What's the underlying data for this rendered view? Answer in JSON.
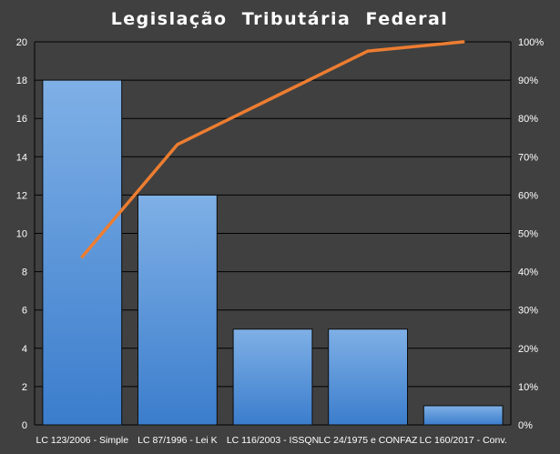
{
  "chart_data": {
    "type": "bar",
    "title": "Legislação  Tributária  Federal",
    "categories": [
      "LC 123/2006 - Simple",
      "LC 87/1996 - Lei K",
      "LC 116/2003 - ISSQN",
      "LC 24/1975 e CONFAZ",
      "LC 160/2017 - Conv."
    ],
    "series": [
      {
        "type": "bar",
        "axis": "left",
        "values": [
          18,
          12,
          5,
          5,
          1
        ]
      },
      {
        "type": "line",
        "axis": "right",
        "values": [
          43.9,
          73.2,
          85.4,
          97.6,
          100
        ]
      }
    ],
    "ylim": [
      0,
      20
    ],
    "yticks": [
      "0",
      "2",
      "4",
      "6",
      "8",
      "10",
      "12",
      "14",
      "16",
      "18",
      "20"
    ],
    "y2lim": [
      0,
      100
    ],
    "y2ticks": [
      "0%",
      "10%",
      "20%",
      "30%",
      "40%",
      "50%",
      "60%",
      "70%",
      "80%",
      "90%",
      "100%"
    ],
    "grid": true,
    "colors": {
      "background": "#404040",
      "grid": "#000000",
      "bar_top": "#7fb0e6",
      "bar_bottom": "#3b7dcc",
      "bar_edge": "#0d0d0d",
      "line": "#ed7d31",
      "text": "#ffffff"
    }
  }
}
